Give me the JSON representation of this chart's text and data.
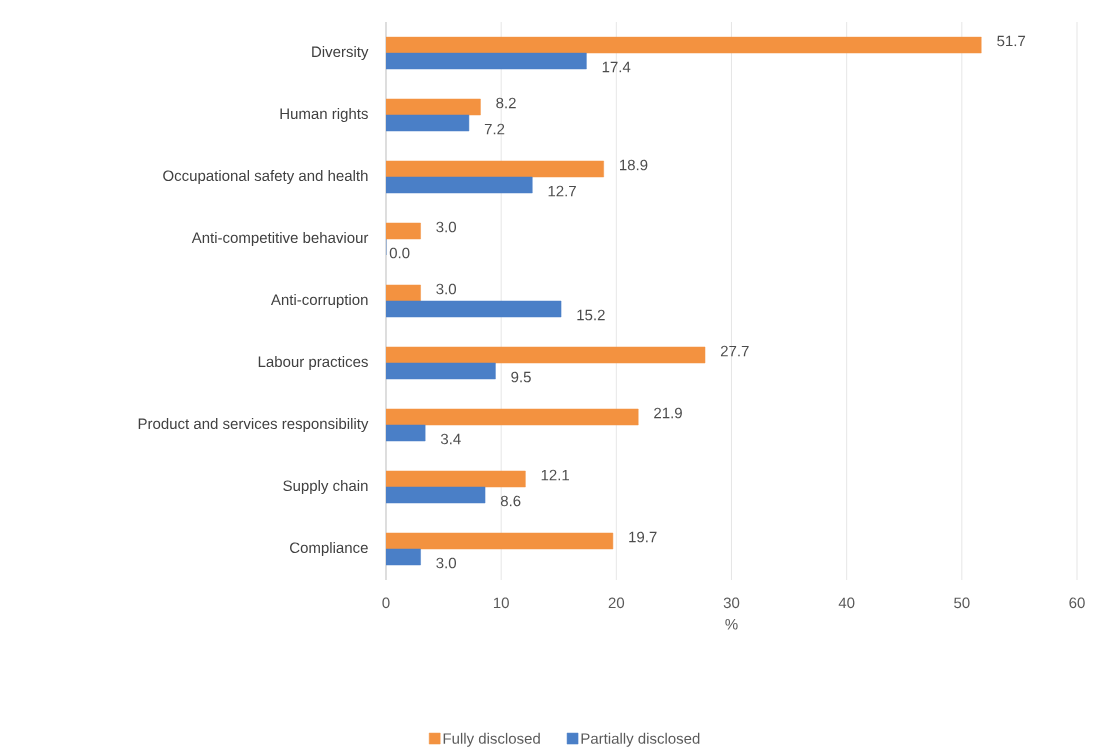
{
  "chart_data": {
    "type": "bar",
    "orientation": "horizontal",
    "xlabel": "%",
    "categories": [
      "Diversity",
      "Human rights",
      "Occupational safety and health",
      "Anti-competitive behaviour",
      "Anti-corruption",
      "Labour practices",
      "Product and services responsibility",
      "Supply chain",
      "Compliance"
    ],
    "series": [
      {
        "name": "Fully disclosed",
        "color": "#f39240",
        "values": [
          51.7,
          8.2,
          18.9,
          3.0,
          3.0,
          27.7,
          21.9,
          12.1,
          19.7
        ],
        "value_labels": [
          "51.7",
          "8.2",
          "18.9",
          "3.0",
          "3.0",
          "27.7",
          "21.9",
          "12.1",
          "19.7"
        ]
      },
      {
        "name": "Partially disclosed",
        "color": "#4a7fc7",
        "values": [
          17.4,
          7.2,
          12.7,
          0.0,
          15.2,
          9.5,
          3.4,
          8.6,
          3.0
        ],
        "value_labels": [
          "17.4",
          "7.2",
          "12.7",
          "0.0",
          "15.2",
          "9.5",
          "3.4",
          "8.6",
          "3.0"
        ]
      }
    ],
    "xlim": [
      0,
      60
    ],
    "xticks": [
      0,
      10,
      20,
      30,
      40,
      50,
      60
    ],
    "grid": "x",
    "legend": "bottom"
  }
}
